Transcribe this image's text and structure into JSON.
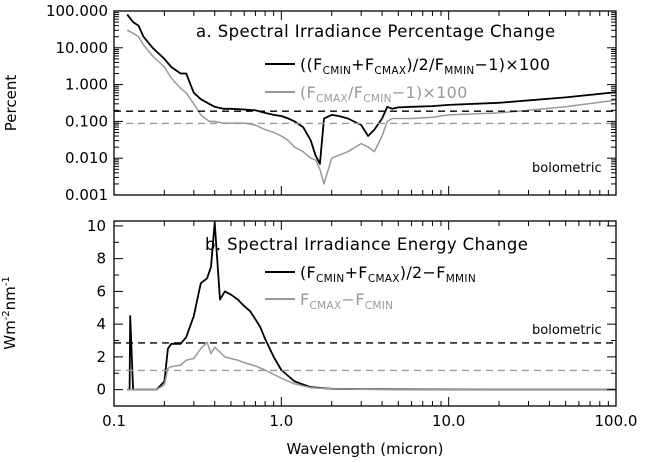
{
  "chart_data": [
    {
      "type": "line",
      "title": "a. Spectral Irradiance Percentage Change",
      "ylabel": "Percent",
      "xlabel": "",
      "xscale": "log",
      "yscale": "log",
      "xlim": [
        0.1,
        100.0
      ],
      "ylim": [
        0.001,
        100.0
      ],
      "xticklabels": [
        "0.1",
        "1.0",
        "10.0",
        "100.0"
      ],
      "yticks": [
        100.0,
        10.0,
        1.0,
        0.1,
        0.01,
        0.001
      ],
      "yticklabels": [
        "100.000",
        "10.000",
        "1.000",
        "0.100",
        "0.010",
        "0.001"
      ],
      "legend_position": "top-right",
      "series": [
        {
          "name": "((F_CMIN+F_CMAX)/2/F_MMIN-1)x100",
          "legend": {
            "pre": "((F",
            "sub1": "CMIN",
            "mid1": "+F",
            "sub2": "CMAX",
            "mid2": ")/2/F",
            "sub3": "MMIN",
            "post": "−1)×100"
          },
          "color": "#000000",
          "x": [
            0.12,
            0.13,
            0.14,
            0.15,
            0.17,
            0.2,
            0.22,
            0.25,
            0.27,
            0.3,
            0.33,
            0.37,
            0.4,
            0.45,
            0.5,
            0.6,
            0.7,
            0.8,
            0.9,
            1.0,
            1.1,
            1.2,
            1.35,
            1.5,
            1.6,
            1.7,
            1.8,
            2.0,
            2.2,
            2.5,
            3.0,
            3.3,
            3.6,
            4.0,
            4.3,
            4.6,
            5.0,
            6.0,
            8.0,
            10.0,
            20.0,
            50.0,
            100.0
          ],
          "y": [
            80,
            50,
            40,
            20,
            10,
            5,
            3,
            2,
            2,
            0.6,
            0.4,
            0.3,
            0.25,
            0.22,
            0.22,
            0.21,
            0.2,
            0.17,
            0.15,
            0.14,
            0.12,
            0.1,
            0.07,
            0.03,
            0.012,
            0.007,
            0.12,
            0.15,
            0.14,
            0.12,
            0.08,
            0.04,
            0.06,
            0.12,
            0.25,
            0.22,
            0.24,
            0.25,
            0.26,
            0.28,
            0.32,
            0.45,
            0.62
          ]
        },
        {
          "name": "(F_CMAX/F_CMIN-1)x100",
          "legend": {
            "pre": "(F",
            "sub1": "CMAX",
            "mid1": "/F",
            "sub2": "CMIN",
            "mid2": "",
            "sub3": "",
            "post": "−1)×100"
          },
          "color": "#999999",
          "x": [
            0.12,
            0.13,
            0.14,
            0.15,
            0.17,
            0.2,
            0.22,
            0.25,
            0.27,
            0.3,
            0.33,
            0.37,
            0.4,
            0.45,
            0.5,
            0.6,
            0.7,
            0.8,
            0.9,
            1.0,
            1.1,
            1.2,
            1.35,
            1.5,
            1.6,
            1.7,
            1.8,
            2.0,
            2.2,
            2.5,
            3.0,
            3.3,
            3.6,
            4.0,
            4.3,
            4.6,
            5.0,
            6.0,
            8.0,
            10.0,
            20.0,
            50.0,
            100.0
          ],
          "y": [
            30,
            25,
            20,
            12,
            6,
            3,
            1.5,
            0.8,
            0.6,
            0.3,
            0.15,
            0.1,
            0.1,
            0.09,
            0.09,
            0.09,
            0.08,
            0.06,
            0.05,
            0.04,
            0.03,
            0.02,
            0.015,
            0.01,
            0.009,
            0.005,
            0.002,
            0.01,
            0.012,
            0.015,
            0.025,
            0.02,
            0.015,
            0.04,
            0.1,
            0.12,
            0.12,
            0.12,
            0.13,
            0.15,
            0.17,
            0.25,
            0.38
          ]
        },
        {
          "name": "bolometric",
          "kind": "hline",
          "y": 0.19,
          "color": "#000000",
          "dashed": true
        },
        {
          "name": "bolometric (grey)",
          "kind": "hline",
          "y": 0.088,
          "color": "#999999",
          "dashed": true
        }
      ],
      "annotations": [
        {
          "text": "bolometric"
        }
      ]
    },
    {
      "type": "line",
      "title": "b. Spectral Irradiance Energy Change",
      "ylabel": "Wm-2nm-1",
      "ylabel_parts": {
        "a": "Wm",
        "b": "-2",
        "c": "nm",
        "d": "-1"
      },
      "xlabel": "Wavelength (micron)",
      "xscale": "log",
      "xlim": [
        0.1,
        100.0
      ],
      "ylim": [
        -1,
        10.3
      ],
      "xticklabels": [
        "0.1",
        "1.0",
        "10.0",
        "100.0"
      ],
      "yticks": [
        0,
        2,
        4,
        6,
        8,
        10
      ],
      "yticklabels": [
        "0",
        "2",
        "4",
        "6",
        "8",
        "10"
      ],
      "legend_position": "top-right",
      "series": [
        {
          "name": "(F_CMIN+F_CMAX)/2-F_MMIN",
          "legend": {
            "pre": "(F",
            "sub1": "CMIN",
            "mid1": "+F",
            "sub2": "CMAX",
            "mid2": ")/2−F",
            "sub3": "MMIN",
            "post": ""
          },
          "color": "#000000",
          "x": [
            0.12,
            0.124,
            0.125,
            0.13,
            0.15,
            0.18,
            0.2,
            0.21,
            0.22,
            0.25,
            0.27,
            0.3,
            0.33,
            0.36,
            0.38,
            0.4,
            0.43,
            0.46,
            0.5,
            0.55,
            0.6,
            0.65,
            0.7,
            0.75,
            0.8,
            0.9,
            1.0,
            1.2,
            1.5,
            2.0,
            3.0,
            5.0,
            10.0,
            20.0,
            50.0,
            100.0
          ],
          "y": [
            0,
            0,
            4.5,
            0,
            0,
            0,
            0.5,
            2.5,
            2.8,
            2.8,
            3.2,
            4.5,
            6.5,
            6.8,
            7.5,
            10.2,
            5.5,
            6.0,
            5.8,
            5.5,
            5.1,
            4.8,
            4.3,
            3.8,
            3.1,
            2.0,
            1.2,
            0.5,
            0.15,
            0.05,
            0.03,
            0.02,
            0.01,
            0.0,
            0.0,
            0.0
          ]
        },
        {
          "name": "F_CMAX-F_CMIN",
          "legend": {
            "pre": "F",
            "sub1": "CMAX",
            "mid1": "−F",
            "sub2": "CMIN",
            "mid2": "",
            "sub3": "",
            "post": ""
          },
          "color": "#999999",
          "x": [
            0.12,
            0.124,
            0.13,
            0.15,
            0.18,
            0.2,
            0.21,
            0.22,
            0.25,
            0.27,
            0.3,
            0.33,
            0.36,
            0.38,
            0.4,
            0.43,
            0.46,
            0.5,
            0.55,
            0.6,
            0.7,
            0.8,
            1.0,
            1.2,
            1.5,
            2.0,
            3.0,
            5.0,
            10.0,
            50.0,
            100.0
          ],
          "y": [
            0,
            0,
            0,
            0,
            0,
            0.3,
            1.3,
            1.4,
            1.5,
            1.8,
            1.9,
            2.5,
            2.9,
            2.2,
            2.6,
            2.3,
            2.0,
            1.9,
            1.8,
            1.65,
            1.45,
            1.2,
            0.7,
            0.35,
            0.12,
            0.05,
            0.02,
            0.01,
            0.0,
            0.0,
            0.0
          ]
        },
        {
          "name": "bolometric",
          "kind": "hline",
          "y": 2.85,
          "color": "#000000",
          "dashed": true
        },
        {
          "name": "bolometric (grey)",
          "kind": "hline",
          "y": 1.17,
          "color": "#999999",
          "dashed": true
        }
      ],
      "annotations": [
        {
          "text": "bolometric"
        }
      ]
    }
  ]
}
